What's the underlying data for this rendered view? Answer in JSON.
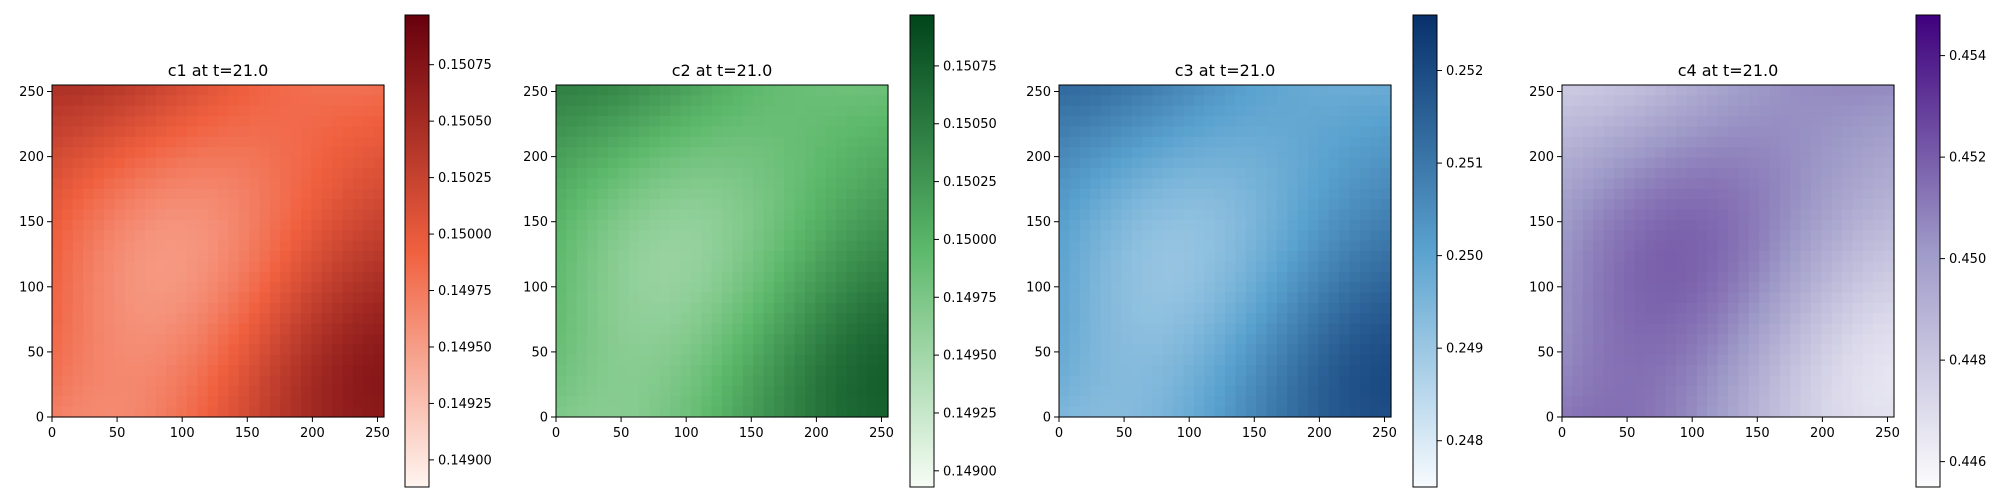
{
  "chart_data": [
    {
      "type": "heatmap",
      "title": "c1 at t=21.0",
      "colormap": "Reds",
      "xlim": [
        0,
        255
      ],
      "ylim": [
        0,
        255
      ],
      "xticks": [
        0,
        50,
        100,
        150,
        200,
        250
      ],
      "yticks": [
        0,
        50,
        100,
        150,
        200,
        250
      ],
      "colorbar": {
        "vmin": 0.14888,
        "vmax": 0.15097,
        "ticks": [
          0.149,
          0.14925,
          0.1495,
          0.14975,
          0.15,
          0.15025,
          0.1505,
          0.15075
        ],
        "tick_labels": [
          "0.14900",
          "0.14925",
          "0.14950",
          "0.14975",
          "0.15000",
          "0.15025",
          "0.15050",
          "0.15075"
        ]
      },
      "colors": {
        "low": "#fff5f0",
        "mid": "#f0603f",
        "high": "#67000d"
      }
    },
    {
      "type": "heatmap",
      "title": "c2 at t=21.0",
      "colormap": "Greens",
      "xlim": [
        0,
        255
      ],
      "ylim": [
        0,
        255
      ],
      "xticks": [
        0,
        50,
        100,
        150,
        200,
        250
      ],
      "yticks": [
        0,
        50,
        100,
        150,
        200,
        250
      ],
      "colorbar": {
        "vmin": 0.14893,
        "vmax": 0.15097,
        "ticks": [
          0.149,
          0.14925,
          0.1495,
          0.14975,
          0.15,
          0.15025,
          0.1505,
          0.15075
        ],
        "tick_labels": [
          "0.14900",
          "0.14925",
          "0.14950",
          "0.14975",
          "0.15000",
          "0.15025",
          "0.15050",
          "0.15075"
        ]
      },
      "colors": {
        "low": "#f7fcf5",
        "mid": "#5db96b",
        "high": "#00441b"
      }
    },
    {
      "type": "heatmap",
      "title": "c3 at t=21.0",
      "colormap": "Blues",
      "xlim": [
        0,
        255
      ],
      "ylim": [
        0,
        255
      ],
      "xticks": [
        0,
        50,
        100,
        150,
        200,
        250
      ],
      "yticks": [
        0,
        50,
        100,
        150,
        200,
        250
      ],
      "colorbar": {
        "vmin": 0.2475,
        "vmax": 0.2526,
        "ticks": [
          0.248,
          0.249,
          0.25,
          0.251,
          0.252
        ],
        "tick_labels": [
          "0.248",
          "0.249",
          "0.250",
          "0.251",
          "0.252"
        ]
      },
      "colors": {
        "low": "#f7fbff",
        "mid": "#5aa2cf",
        "high": "#08306b"
      }
    },
    {
      "type": "heatmap",
      "title": "c4 at t=21.0",
      "colormap": "Purples",
      "xlim": [
        0,
        255
      ],
      "ylim": [
        0,
        255
      ],
      "xticks": [
        0,
        50,
        100,
        150,
        200,
        250
      ],
      "yticks": [
        0,
        50,
        100,
        150,
        200,
        250
      ],
      "colorbar": {
        "vmin": 0.4455,
        "vmax": 0.4548,
        "ticks": [
          0.446,
          0.448,
          0.45,
          0.452,
          0.454
        ],
        "tick_labels": [
          "0.446",
          "0.448",
          "0.450",
          "0.452",
          "0.454"
        ]
      },
      "colors": {
        "low": "#fcfbfd",
        "mid": "#9e9ac8",
        "high": "#3f007d"
      }
    }
  ]
}
